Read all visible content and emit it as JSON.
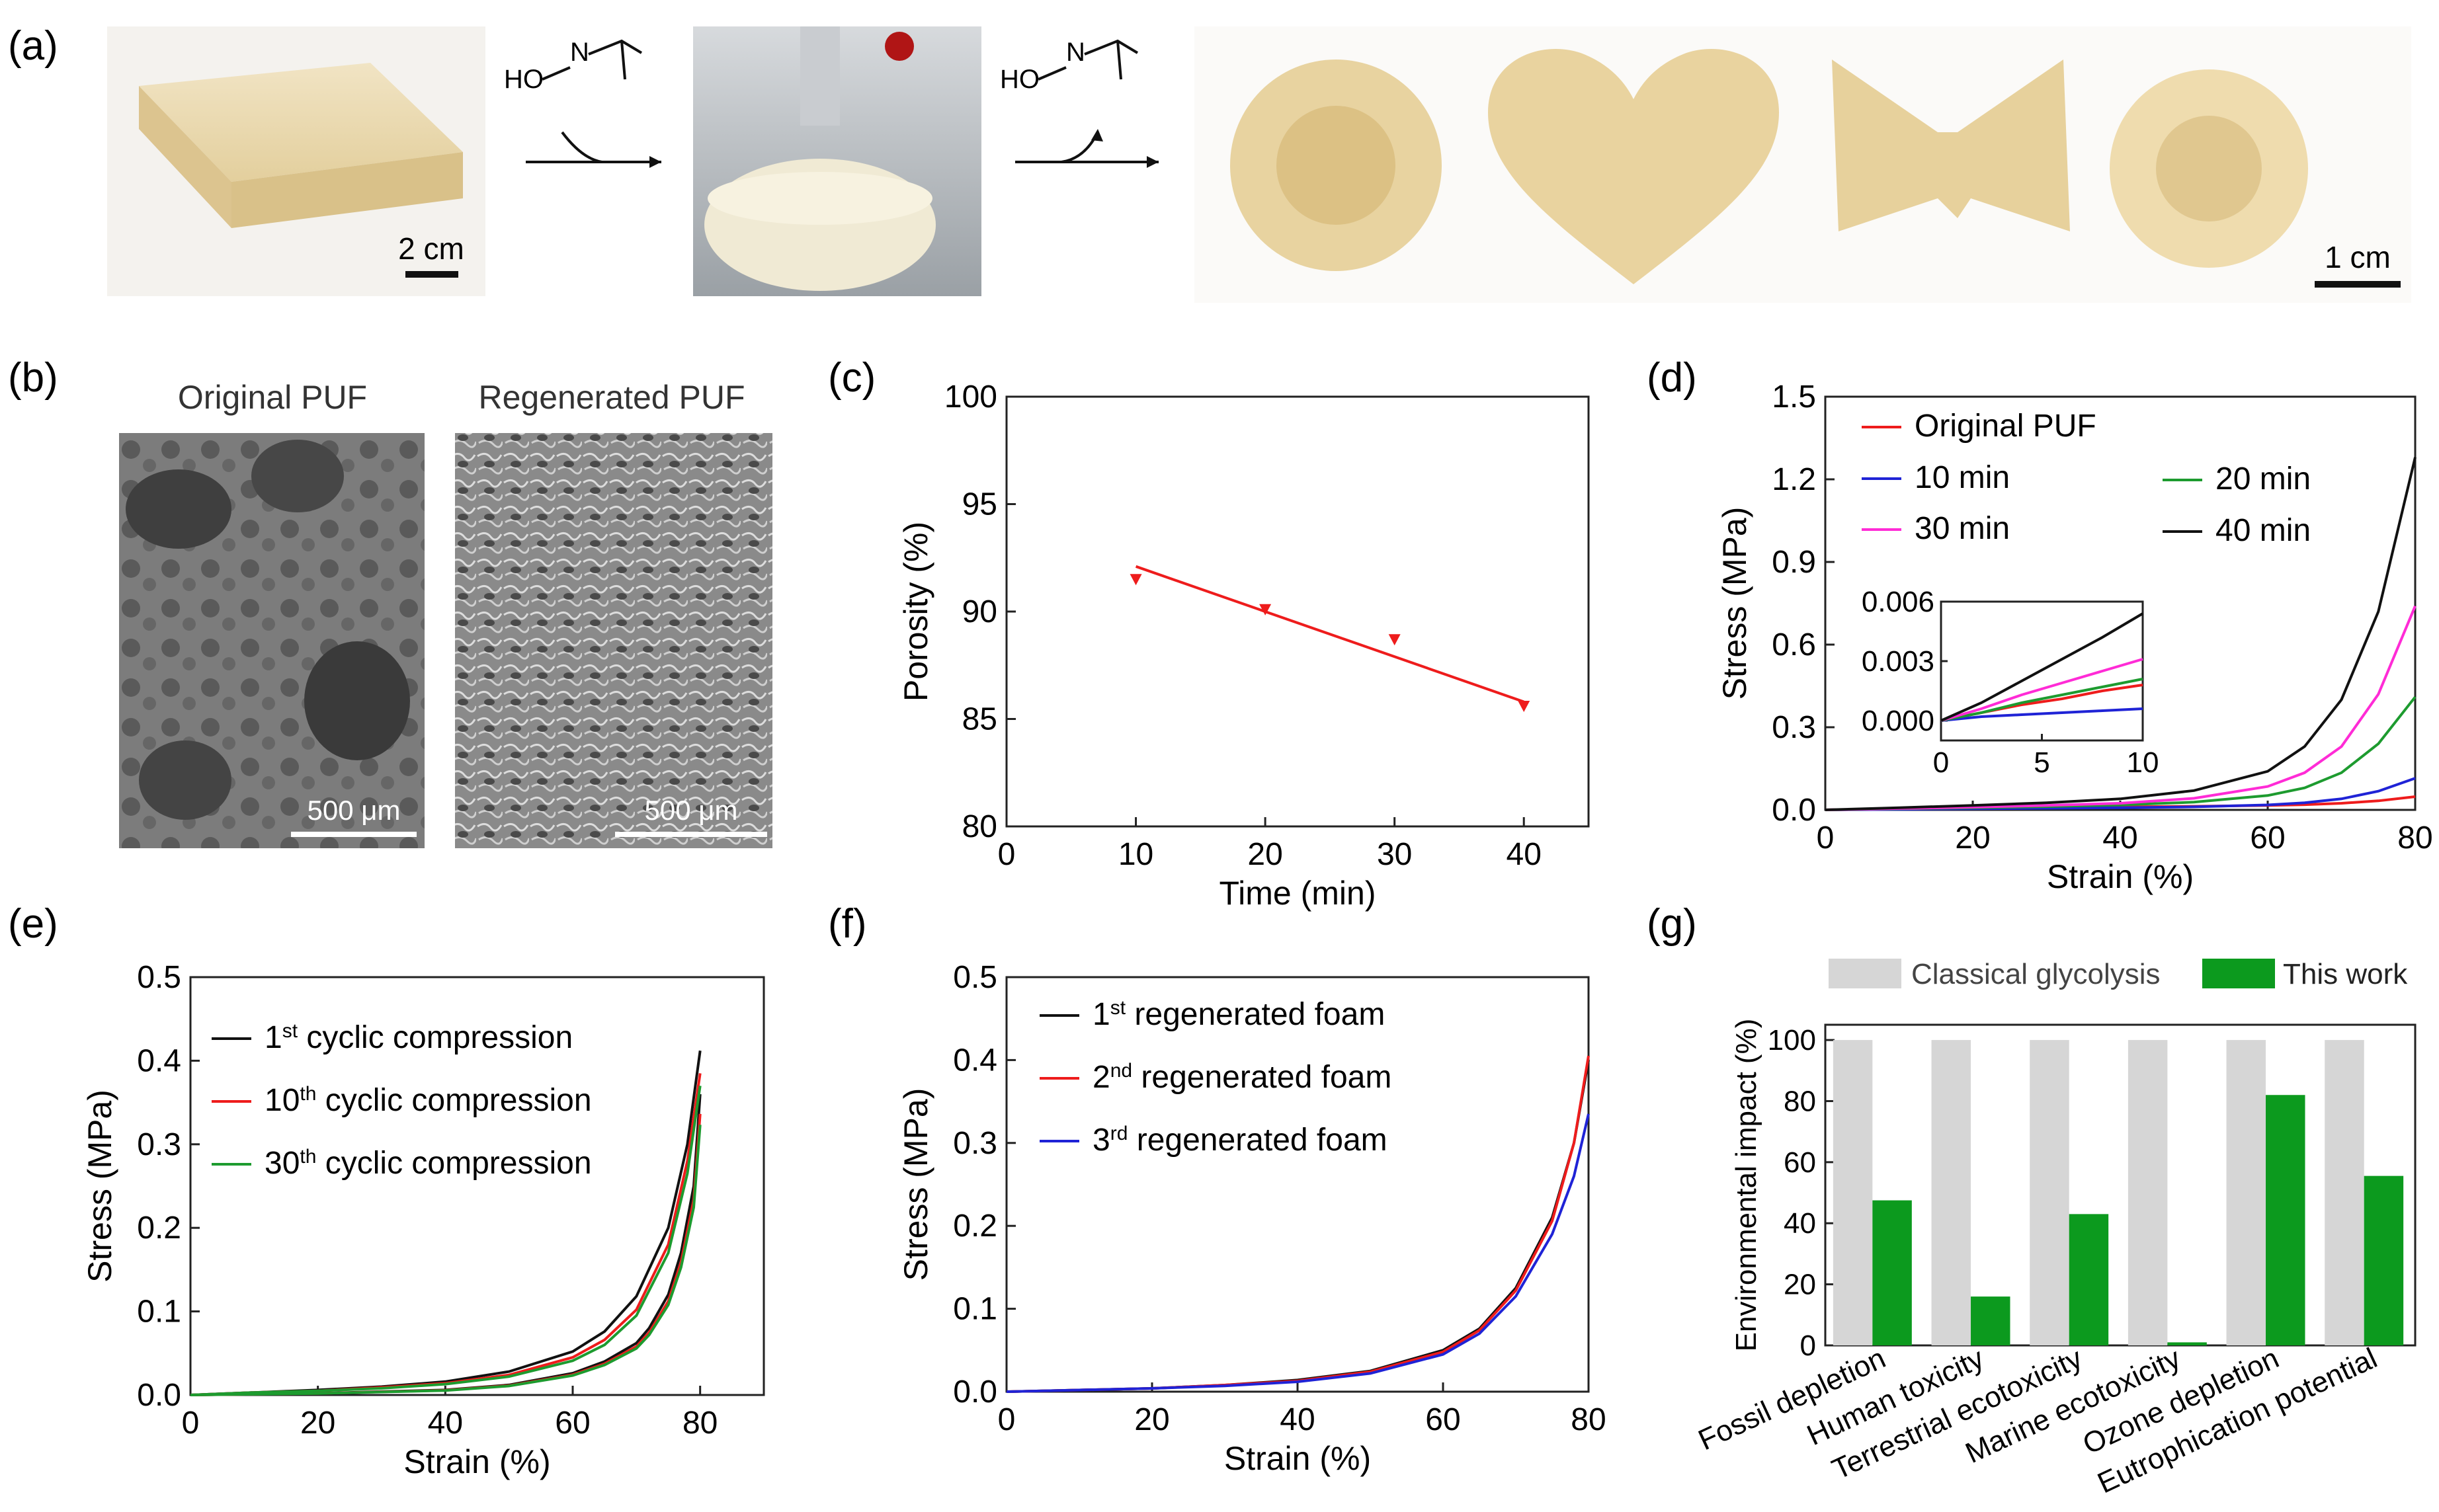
{
  "panels": {
    "a": {
      "label": "(a)",
      "reagent": "HO",
      "reagent_n": "N",
      "scale_left": "2 cm",
      "scale_right": "1 cm",
      "photos": [
        "foam-block-photo",
        "flask-photo",
        "flower-foam",
        "heart-foam",
        "butterfly-foam",
        "sun-foam"
      ]
    },
    "b": {
      "label": "(b)",
      "title_left": "Original PUF",
      "title_right": "Regenerated PUF",
      "scale_left": "500 μm",
      "scale_right": "500 μm"
    }
  },
  "chart_data": [
    {
      "id": "c",
      "label": "(c)",
      "type": "scatter",
      "xlabel": "Time (min)",
      "ylabel": "Porosity (%)",
      "xlim": [
        0,
        45
      ],
      "ylim": [
        80,
        100
      ],
      "xticks": [
        0,
        10,
        20,
        30,
        40
      ],
      "yticks": [
        80,
        85,
        90,
        95,
        100
      ],
      "points": [
        {
          "x": 10,
          "y": 91.5
        },
        {
          "x": 20,
          "y": 90.1
        },
        {
          "x": 30,
          "y": 88.7
        },
        {
          "x": 40,
          "y": 85.6
        }
      ],
      "fit": [
        {
          "x": 10,
          "y": 92.1
        },
        {
          "x": 40,
          "y": 85.8
        }
      ],
      "color": "#ee1c1c"
    },
    {
      "id": "d",
      "label": "(d)",
      "type": "line",
      "xlabel": "Strain (%)",
      "ylabel": "Stress (MPa)",
      "xlim": [
        0,
        80
      ],
      "ylim": [
        0,
        1.5
      ],
      "xticks": [
        0,
        20,
        40,
        60,
        80
      ],
      "yticks": [
        "0.0",
        "0.3",
        "0.6",
        "0.9",
        "1.2",
        "1.5"
      ],
      "series": [
        {
          "name": "Original PUF",
          "color": "#ee1c1c",
          "x": [
            0,
            10,
            20,
            30,
            40,
            50,
            60,
            65,
            70,
            75,
            80
          ],
          "y": [
            0,
            0.004,
            0.007,
            0.009,
            0.011,
            0.013,
            0.016,
            0.019,
            0.024,
            0.033,
            0.048
          ]
        },
        {
          "name": "10 min",
          "color": "#1f23d6",
          "x": [
            0,
            10,
            20,
            30,
            40,
            50,
            60,
            65,
            70,
            75,
            80
          ],
          "y": [
            0,
            0.002,
            0.004,
            0.006,
            0.008,
            0.011,
            0.018,
            0.026,
            0.04,
            0.068,
            0.115
          ]
        },
        {
          "name": "20 min",
          "color": "#1d9b2f",
          "x": [
            0,
            10,
            20,
            30,
            40,
            50,
            60,
            65,
            70,
            75,
            80
          ],
          "y": [
            0,
            0.004,
            0.008,
            0.012,
            0.018,
            0.028,
            0.052,
            0.08,
            0.135,
            0.24,
            0.41
          ]
        },
        {
          "name": "30 min",
          "color": "#ff2bd6",
          "x": [
            0,
            10,
            20,
            30,
            40,
            50,
            60,
            65,
            70,
            75,
            80
          ],
          "y": [
            0,
            0.005,
            0.01,
            0.016,
            0.024,
            0.042,
            0.085,
            0.135,
            0.23,
            0.42,
            0.74
          ]
        },
        {
          "name": "40 min",
          "color": "#111111",
          "x": [
            0,
            10,
            20,
            30,
            40,
            50,
            60,
            65,
            70,
            75,
            80
          ],
          "y": [
            0,
            0.008,
            0.016,
            0.026,
            0.04,
            0.07,
            0.14,
            0.23,
            0.4,
            0.72,
            1.28
          ]
        }
      ],
      "inset": {
        "xlim": [
          0,
          10
        ],
        "ylim": [
          -0.001,
          0.006
        ],
        "xticks": [
          0,
          5,
          10
        ],
        "yticks": [
          "0.000",
          "0.003",
          "0.006"
        ],
        "series": [
          {
            "name": "Original PUF",
            "color": "#ee1c1c",
            "x": [
              0,
              2,
              4,
              6,
              8,
              10
            ],
            "y": [
              0,
              0.0004,
              0.0008,
              0.0011,
              0.0015,
              0.0018
            ]
          },
          {
            "name": "10 min",
            "color": "#1f23d6",
            "x": [
              0,
              2,
              4,
              6,
              8,
              10
            ],
            "y": [
              0,
              0.0002,
              0.0003,
              0.0004,
              0.0005,
              0.0006
            ]
          },
          {
            "name": "20 min",
            "color": "#1d9b2f",
            "x": [
              0,
              2,
              4,
              6,
              8,
              10
            ],
            "y": [
              0,
              0.0004,
              0.0009,
              0.0013,
              0.0017,
              0.0021
            ]
          },
          {
            "name": "30 min",
            "color": "#ff2bd6",
            "x": [
              0,
              2,
              4,
              6,
              8,
              10
            ],
            "y": [
              0,
              0.0006,
              0.0013,
              0.0019,
              0.0025,
              0.0031
            ]
          },
          {
            "name": "40 min",
            "color": "#111111",
            "x": [
              0,
              2,
              4,
              6,
              8,
              10
            ],
            "y": [
              0,
              0.0009,
              0.002,
              0.0031,
              0.0042,
              0.0054
            ]
          }
        ]
      }
    },
    {
      "id": "e",
      "label": "(e)",
      "type": "line",
      "xlabel": "Strain (%)",
      "ylabel": "Stress (MPa)",
      "xlim": [
        0,
        90
      ],
      "ylim": [
        0,
        0.5
      ],
      "xticks": [
        0,
        20,
        40,
        60,
        80
      ],
      "yticks": [
        "0.0",
        "0.1",
        "0.2",
        "0.3",
        "0.4",
        "0.5"
      ],
      "series": [
        {
          "name": "1st cyclic compression",
          "sup": "st",
          "pre": "1",
          "post": " cyclic compression",
          "color": "#111111",
          "x": [
            0,
            10,
            20,
            30,
            40,
            50,
            60,
            65,
            70,
            75,
            78,
            80
          ],
          "y": [
            0,
            0.003,
            0.006,
            0.01,
            0.016,
            0.028,
            0.052,
            0.076,
            0.118,
            0.2,
            0.3,
            0.412
          ]
        },
        {
          "name": "10th cyclic compression",
          "sup": "th",
          "pre": "10",
          "post": " cyclic compression",
          "color": "#ee1c1c",
          "x": [
            0,
            10,
            20,
            30,
            40,
            50,
            60,
            65,
            70,
            75,
            78,
            80
          ],
          "y": [
            0,
            0.003,
            0.005,
            0.009,
            0.014,
            0.024,
            0.045,
            0.066,
            0.102,
            0.18,
            0.28,
            0.385
          ]
        },
        {
          "name": "30th cyclic compression",
          "sup": "th",
          "pre": "30",
          "post": " cyclic compression",
          "color": "#1d9b2f",
          "x": [
            0,
            10,
            20,
            30,
            40,
            50,
            60,
            65,
            70,
            75,
            78,
            80
          ],
          "y": [
            0,
            0.003,
            0.005,
            0.008,
            0.013,
            0.022,
            0.041,
            0.06,
            0.095,
            0.17,
            0.265,
            0.37
          ]
        }
      ],
      "unload": {
        "x": [
          80,
          79,
          77,
          75,
          72,
          70,
          65,
          60,
          50,
          40,
          30,
          20,
          10,
          0
        ],
        "y": [
          0.36,
          0.25,
          0.17,
          0.12,
          0.08,
          0.062,
          0.04,
          0.026,
          0.012,
          0.006,
          0.004,
          0.002,
          0.001,
          0
        ]
      }
    },
    {
      "id": "f",
      "label": "(f)",
      "type": "line",
      "xlabel": "Strain (%)",
      "ylabel": "Stress (MPa)",
      "xlim": [
        0,
        80
      ],
      "ylim": [
        0,
        0.5
      ],
      "xticks": [
        0,
        20,
        40,
        60,
        80
      ],
      "yticks": [
        "0.0",
        "0.1",
        "0.2",
        "0.3",
        "0.4",
        "0.5"
      ],
      "series": [
        {
          "name": "1st regenerated foam",
          "pre": "1",
          "sup": "st",
          "post": " regenerated foam",
          "color": "#111111",
          "x": [
            0,
            10,
            20,
            30,
            40,
            50,
            60,
            65,
            70,
            75,
            78,
            80
          ],
          "y": [
            0,
            0.002,
            0.004,
            0.008,
            0.014,
            0.025,
            0.05,
            0.076,
            0.125,
            0.21,
            0.3,
            0.4
          ]
        },
        {
          "name": "2nd regenerated foam",
          "pre": "2",
          "sup": "nd",
          "post": " regenerated foam",
          "color": "#ee1c1c",
          "x": [
            0,
            10,
            20,
            30,
            40,
            50,
            60,
            65,
            70,
            75,
            78,
            80
          ],
          "y": [
            0,
            0.002,
            0.004,
            0.008,
            0.013,
            0.024,
            0.048,
            0.074,
            0.122,
            0.206,
            0.3,
            0.405
          ]
        },
        {
          "name": "3rd regenerated foam",
          "pre": "3",
          "sup": "rd",
          "post": " regenerated foam",
          "color": "#1f23d6",
          "x": [
            0,
            10,
            20,
            30,
            40,
            50,
            60,
            65,
            70,
            75,
            78,
            80
          ],
          "y": [
            0,
            0.002,
            0.004,
            0.007,
            0.012,
            0.022,
            0.045,
            0.07,
            0.115,
            0.19,
            0.26,
            0.335
          ]
        }
      ]
    },
    {
      "id": "g",
      "label": "(g)",
      "type": "bar",
      "ylabel": "Environmental impact (%)",
      "ylim": [
        0,
        105
      ],
      "yticks": [
        0,
        20,
        40,
        60,
        80,
        100
      ],
      "categories": [
        "Fossil depletion",
        "Human toxicity",
        "Terrestrial ecotoxicity",
        "Marine ecotoxicity",
        "Ozone depletion",
        "Eutrophication potential"
      ],
      "series": [
        {
          "name": "Classical glycolysis",
          "color": "#d6d6d6",
          "values": [
            100,
            100,
            100,
            100,
            100,
            100
          ]
        },
        {
          "name": "This work",
          "color": "#0c9a1e",
          "values": [
            47.5,
            16,
            43,
            1,
            82,
            55.5
          ]
        }
      ]
    }
  ]
}
